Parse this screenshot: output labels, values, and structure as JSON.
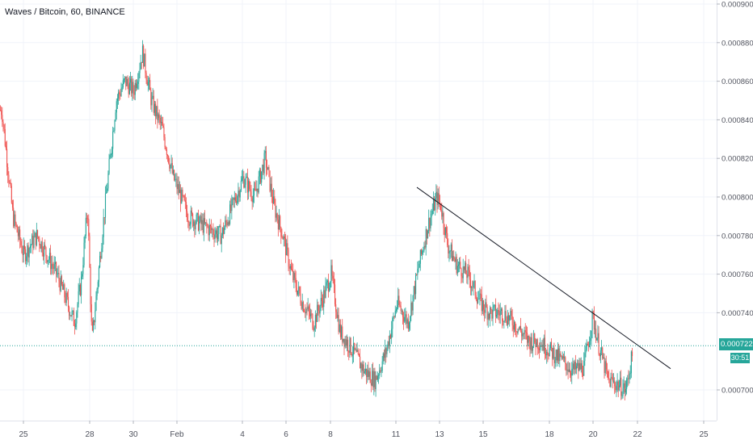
{
  "chart_title": "Waves / Bitcoin, 60, BINANCE",
  "colors": {
    "up": "#26a69a",
    "down": "#ef5350",
    "grid": "#f0f3fa",
    "axis_text": "#50535e",
    "trendline": "#131722",
    "last_price_line": "#26a69a"
  },
  "last_price_label": "0.0007229",
  "countdown_label": "30:51",
  "chart_data": {
    "type": "candlestick",
    "title": "Waves / Bitcoin, 60, BINANCE",
    "xlabel": "",
    "ylabel": "",
    "ylim": [
      0.00068,
      0.0009
    ],
    "y_ticks": [
      "0.0009000",
      "0.0008800",
      "0.0008600",
      "0.0008400",
      "0.0008200",
      "0.0008000",
      "0.0007800",
      "0.0007600",
      "0.0007400",
      "0.0007000"
    ],
    "x_ticks": [
      "25",
      "28",
      "30",
      "Feb",
      "4",
      "6",
      "8",
      "11",
      "13",
      "15",
      "18",
      "20",
      "22",
      "25"
    ],
    "last_price": 0.0007229,
    "grid": true,
    "trendline": {
      "from": [
        "13",
        0.000805
      ],
      "to": [
        "22",
        0.000711
      ]
    },
    "price_path": [
      [
        "24",
        0.000845
      ],
      [
        "24.5",
        0.00079
      ],
      [
        "25",
        0.00077
      ],
      [
        "25.6",
        0.00078
      ],
      [
        "26.5",
        0.00076
      ],
      [
        "27.3",
        0.000735
      ],
      [
        "27.6",
        0.000755
      ],
      [
        "27.9",
        0.000795
      ],
      [
        "28.1",
        0.000725
      ],
      [
        "28.6",
        0.000785
      ],
      [
        "29.2",
        0.00085
      ],
      [
        "29.6",
        0.00086
      ],
      [
        "30.0",
        0.000855
      ],
      [
        "30.4",
        0.000875
      ],
      [
        "30.8",
        0.00085
      ],
      [
        "31.3",
        0.000835
      ],
      [
        "31.8",
        0.00081
      ],
      [
        "Feb",
        0.000805
      ],
      [
        "1.5",
        0.00079
      ],
      [
        "2.2",
        0.000785
      ],
      [
        "3",
        0.00078
      ],
      [
        "3.5",
        0.000795
      ],
      [
        "4",
        0.00081
      ],
      [
        "4.5",
        0.0008
      ],
      [
        "5",
        0.00082
      ],
      [
        "5.4",
        0.000795
      ],
      [
        "5.8",
        0.00078
      ],
      [
        "6.2",
        0.00076
      ],
      [
        "6.7",
        0.000745
      ],
      [
        "7.2",
        0.000735
      ],
      [
        "7.7",
        0.00075
      ],
      [
        "8",
        0.00076
      ],
      [
        "8.4",
        0.00073
      ],
      [
        "9",
        0.00072
      ],
      [
        "9.5",
        0.00071
      ],
      [
        "10",
        0.000705
      ],
      [
        "10.5",
        0.00072
      ],
      [
        "11",
        0.000745
      ],
      [
        "11.5",
        0.000735
      ],
      [
        "12",
        0.000765
      ],
      [
        "12.4",
        0.000785
      ],
      [
        "12.8",
        0.0008
      ],
      [
        "13",
        0.000795
      ],
      [
        "13.3",
        0.000775
      ],
      [
        "13.7",
        0.000765
      ],
      [
        "14.2",
        0.00076
      ],
      [
        "14.8",
        0.000745
      ],
      [
        "15.2",
        0.00074
      ],
      [
        "15.8",
        0.00074
      ],
      [
        "16.3",
        0.000735
      ],
      [
        "17",
        0.000725
      ],
      [
        "17.5",
        0.000725
      ],
      [
        "18",
        0.00072
      ],
      [
        "18.5",
        0.000715
      ],
      [
        "19",
        0.00071
      ],
      [
        "19.5",
        0.000712
      ],
      [
        "19.9",
        0.000738
      ],
      [
        "20.2",
        0.000722
      ],
      [
        "20.6",
        0.000705
      ],
      [
        "21",
        0.000703
      ],
      [
        "21.4",
        0.0007
      ],
      [
        "21.6",
        0.000712
      ],
      [
        "21.8",
        0.000723
      ]
    ]
  }
}
